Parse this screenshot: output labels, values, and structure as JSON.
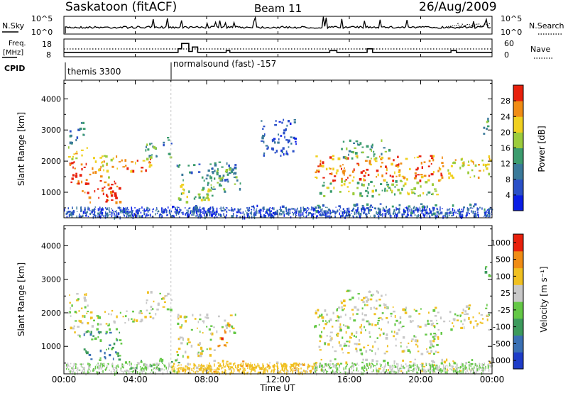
{
  "header": {
    "station": "Saskatoon (fitACF)",
    "beam": "Beam 11",
    "date": "26/Aug/2009"
  },
  "nsky_panel": {
    "label": "N.Sky",
    "right_label": "N.Search",
    "ticks_left": [
      "10^5",
      "10^0"
    ],
    "ticks_right": [
      "10^5",
      "10^0"
    ]
  },
  "freq_panel": {
    "label_line1": "Freq.",
    "label_line2": "[MHz]",
    "right_label": "Nave",
    "ticks_left": [
      "18",
      "8"
    ],
    "ticks_right": [
      "60",
      "0"
    ]
  },
  "cpid_panel": {
    "label": "CPID",
    "modes": [
      {
        "name": "themis 3300",
        "start_hour": 0
      },
      {
        "name": "normalsound (fast) -157",
        "start_hour": 6
      }
    ]
  },
  "x_axis": {
    "ticks": [
      "00:00",
      "04:00",
      "08:00",
      "12:00",
      "16:00",
      "20:00",
      "00:00"
    ],
    "label": "Time UT"
  },
  "power_panel": {
    "ylabel": "Slant Range [km]",
    "yticks": [
      "4000",
      "3000",
      "2000",
      "1000"
    ],
    "colorbar_label": "Power [dB]",
    "colorbar_ticks": [
      "28",
      "24",
      "20",
      "16",
      "12",
      "8",
      "4"
    ],
    "colors": [
      "#0a1ee6",
      "#2a50c8",
      "#3a7a9a",
      "#3c9c6e",
      "#9ccc3c",
      "#f0d020",
      "#f08c14",
      "#e8200c"
    ]
  },
  "velocity_panel": {
    "ylabel": "Slant Range [km]",
    "yticks": [
      "4000",
      "3000",
      "2000",
      "1000"
    ],
    "colorbar_label": "Velocity [m s⁻¹]",
    "colorbar_ticks": [
      "1000",
      "500",
      "100",
      "25",
      "-25",
      "-100",
      "-500",
      "-1000"
    ],
    "colors": [
      "#1e3cc8",
      "#3a70b4",
      "#3c9a5c",
      "#64c846",
      "#c8c8c8",
      "#f0c020",
      "#f08c14",
      "#e8200c"
    ]
  },
  "chart_data": [
    {
      "type": "line",
      "name": "N.Sky / N.Search",
      "x_range_hours": [
        0,
        24
      ],
      "y_scale": "log",
      "ylim": [
        1,
        100000
      ]
    },
    {
      "type": "line",
      "name": "Freq / Nave",
      "x_range_hours": [
        0,
        24
      ],
      "ylim_freq_mhz": [
        8,
        18
      ],
      "ylim_nave": [
        0,
        60
      ],
      "freq_steps": [
        {
          "t": 0,
          "mhz": 10.5
        },
        {
          "t": 0.1,
          "mhz": 10.5
        },
        {
          "t": 6.3,
          "mhz": 10.5
        },
        {
          "t": 6.4,
          "mhz": 12.5
        },
        {
          "t": 6.6,
          "mhz": 15.5
        },
        {
          "t": 6.9,
          "mhz": 15.5
        },
        {
          "t": 7.0,
          "mhz": 11
        },
        {
          "t": 7.2,
          "mhz": 13.5
        },
        {
          "t": 7.5,
          "mhz": 10.5
        },
        {
          "t": 9.0,
          "mhz": 10.5
        },
        {
          "t": 9.1,
          "mhz": 11.5
        },
        {
          "t": 9.3,
          "mhz": 10.5
        },
        {
          "t": 14.8,
          "mhz": 10.5
        },
        {
          "t": 14.9,
          "mhz": 11.5
        },
        {
          "t": 15.3,
          "mhz": 10.5
        },
        {
          "t": 16.9,
          "mhz": 10.5
        },
        {
          "t": 17.0,
          "mhz": 12.5
        },
        {
          "t": 17.3,
          "mhz": 10.5
        },
        {
          "t": 21.6,
          "mhz": 10.5
        },
        {
          "t": 21.7,
          "mhz": 11.5
        },
        {
          "t": 22.0,
          "mhz": 10.5
        },
        {
          "t": 24,
          "mhz": 10.5
        }
      ]
    },
    {
      "type": "heatmap",
      "name": "Power [dB]",
      "x_range_hours": [
        0,
        24
      ],
      "ylim_km": [
        180,
        4600
      ],
      "value_range_db": [
        0,
        32
      ],
      "blobs": [
        {
          "t0": 0.1,
          "t1": 1.4,
          "r0": 1300,
          "r1": 2000,
          "level": 7
        },
        {
          "t0": 0.2,
          "t1": 1.3,
          "r0": 2100,
          "r1": 2500,
          "level": 5
        },
        {
          "t0": 0.3,
          "t1": 1.2,
          "r0": 2600,
          "r1": 3300,
          "level": 2
        },
        {
          "t0": 1.0,
          "t1": 3.2,
          "r0": 700,
          "r1": 1400,
          "level": 7
        },
        {
          "t0": 1.4,
          "t1": 3.0,
          "r0": 1500,
          "r1": 2200,
          "level": 5
        },
        {
          "t0": 3.0,
          "t1": 5.2,
          "r0": 1700,
          "r1": 2100,
          "level": 6
        },
        {
          "t0": 4.5,
          "t1": 6.0,
          "r0": 2100,
          "r1": 2600,
          "level": 3
        },
        {
          "t0": 5.4,
          "t1": 6.1,
          "r0": 2500,
          "r1": 2800,
          "level": 2
        },
        {
          "t0": 6.2,
          "t1": 8.4,
          "r0": 700,
          "r1": 1300,
          "level": 4
        },
        {
          "t0": 6.3,
          "t1": 9.6,
          "r0": 1400,
          "r1": 2000,
          "level": 2
        },
        {
          "t0": 8.0,
          "t1": 10.0,
          "r0": 1000,
          "r1": 1800,
          "level": 3
        },
        {
          "t0": 6.0,
          "t1": 14.0,
          "r0": 220,
          "r1": 600,
          "level": 1
        },
        {
          "t0": 11.0,
          "t1": 13.0,
          "r0": 2200,
          "r1": 3400,
          "level": 1
        },
        {
          "t0": 14.0,
          "t1": 21.3,
          "r0": 1400,
          "r1": 2200,
          "level": 6
        },
        {
          "t0": 14.2,
          "t1": 21.0,
          "r0": 900,
          "r1": 1400,
          "level": 4
        },
        {
          "t0": 15.5,
          "t1": 18.2,
          "r0": 2100,
          "r1": 2700,
          "level": 3
        },
        {
          "t0": 14.0,
          "t1": 24.0,
          "r0": 220,
          "r1": 650,
          "level": 2
        },
        {
          "t0": 21.5,
          "t1": 24.0,
          "r0": 1500,
          "r1": 2200,
          "level": 5
        },
        {
          "t0": 23.4,
          "t1": 24.0,
          "r0": 2900,
          "r1": 3500,
          "level": 3
        },
        {
          "t0": 0.0,
          "t1": 6.0,
          "r0": 220,
          "r1": 500,
          "level": 1
        }
      ]
    },
    {
      "type": "heatmap",
      "name": "Velocity [m s-1]",
      "x_range_hours": [
        0,
        24
      ],
      "ylim_km": [
        180,
        4600
      ],
      "blobs": [
        {
          "t0": 0.1,
          "t1": 1.3,
          "r0": 1300,
          "r1": 2100,
          "level": 4
        },
        {
          "t0": 0.2,
          "t1": 1.3,
          "r0": 2100,
          "r1": 2600,
          "level": 4
        },
        {
          "t0": 1.1,
          "t1": 3.2,
          "r0": 600,
          "r1": 1500,
          "level": 2
        },
        {
          "t0": 1.4,
          "t1": 3.0,
          "r0": 1500,
          "r1": 2100,
          "level": 4
        },
        {
          "t0": 3.0,
          "t1": 5.2,
          "r0": 1700,
          "r1": 2100,
          "level": 4
        },
        {
          "t0": 4.5,
          "t1": 6.0,
          "r0": 2100,
          "r1": 2700,
          "level": 4
        },
        {
          "t0": 3.3,
          "t1": 6.5,
          "r0": 250,
          "r1": 700,
          "level": 3
        },
        {
          "t0": 6.2,
          "t1": 8.4,
          "r0": 700,
          "r1": 1300,
          "level": 4
        },
        {
          "t0": 6.3,
          "t1": 9.6,
          "r0": 1400,
          "r1": 2000,
          "level": 4
        },
        {
          "t0": 8.6,
          "t1": 9.3,
          "r0": 1000,
          "r1": 1700,
          "level": 6
        },
        {
          "t0": 6.5,
          "t1": 14.5,
          "r0": 220,
          "r1": 600,
          "level": 5
        },
        {
          "t0": 14.0,
          "t1": 21.3,
          "r0": 1300,
          "r1": 2200,
          "level": 4
        },
        {
          "t0": 14.2,
          "t1": 21.0,
          "r0": 800,
          "r1": 1300,
          "level": 4
        },
        {
          "t0": 15.5,
          "t1": 18.2,
          "r0": 2100,
          "r1": 2700,
          "level": 4
        },
        {
          "t0": 14.0,
          "t1": 24.0,
          "r0": 220,
          "r1": 650,
          "level": 4
        },
        {
          "t0": 21.5,
          "t1": 24.0,
          "r0": 1500,
          "r1": 2300,
          "level": 4
        },
        {
          "t0": 23.4,
          "t1": 24.0,
          "r0": 2900,
          "r1": 3400,
          "level": 3
        }
      ]
    }
  ]
}
